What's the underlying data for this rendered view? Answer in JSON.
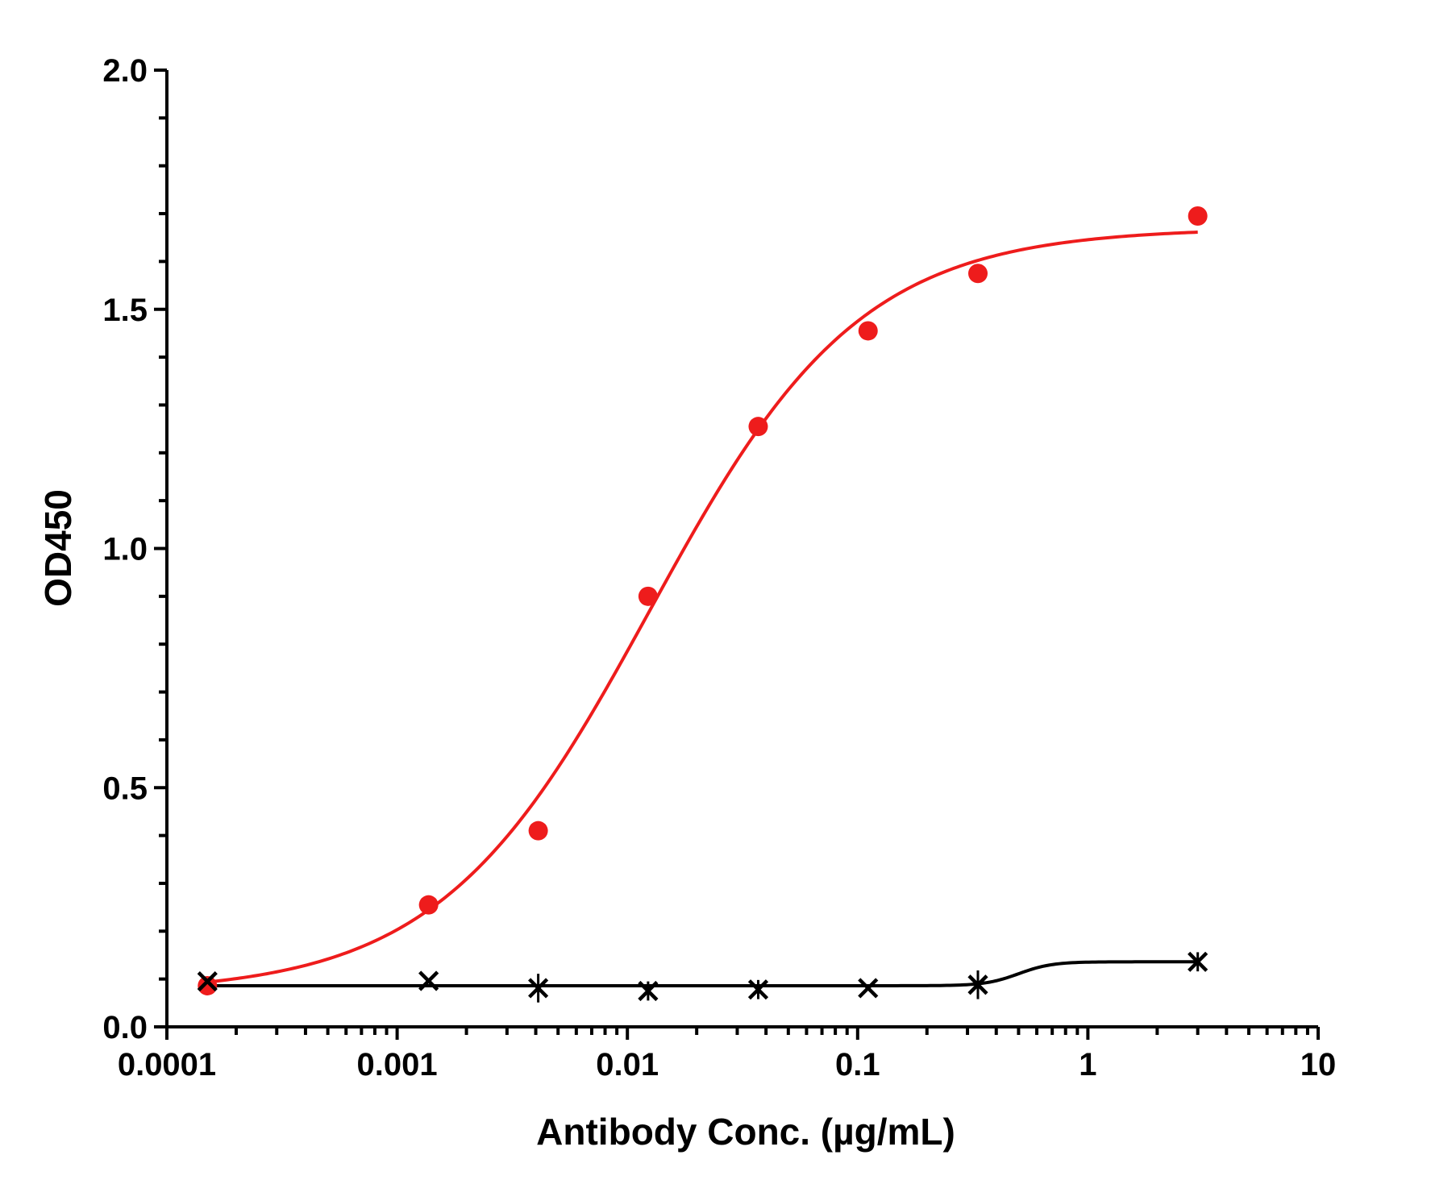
{
  "chart_data": {
    "type": "scatter",
    "title": "",
    "xlabel": "Antibody Conc. (µg/mL)",
    "ylabel": "OD450",
    "x_scale": "log",
    "xlim": [
      0.0001,
      10
    ],
    "ylim": [
      0,
      2.0
    ],
    "grid": false,
    "x_ticks": [
      0.0001,
      0.001,
      0.01,
      0.1,
      1,
      10
    ],
    "x_tick_labels": [
      "0.0001",
      "0.001",
      "0.01",
      "0.1",
      "1",
      "10"
    ],
    "y_ticks": [
      0,
      0.5,
      1.0,
      1.5,
      2.0
    ],
    "y_tick_labels": [
      "0.0",
      "0.5",
      "1.0",
      "1.5",
      "2.0"
    ],
    "series": [
      {
        "marker": "circle",
        "color": "#ee1c1c",
        "x": [
          0.00015,
          0.00137,
          0.0041,
          0.0123,
          0.037,
          0.111,
          0.333,
          3.0
        ],
        "y": [
          0.086,
          0.255,
          0.41,
          0.9,
          1.255,
          1.455,
          1.575,
          1.695
        ],
        "fit": {
          "model": "4PL",
          "bottom": 0.07,
          "top": 1.67,
          "ec50": 0.0125,
          "hill": 0.95
        }
      },
      {
        "marker": "x",
        "color": "#000000",
        "x": [
          0.00015,
          0.00137,
          0.0041,
          0.0123,
          0.037,
          0.111,
          0.333,
          3.0
        ],
        "y": [
          0.095,
          0.096,
          0.081,
          0.075,
          0.078,
          0.081,
          0.088,
          0.136
        ],
        "errors": [
          0.0,
          0.0,
          0.03,
          0.02,
          0.02,
          0.0,
          0.03,
          0.02
        ],
        "fit": {
          "model": "4PL",
          "bottom": 0.086,
          "top": 0.136,
          "ec50": 0.5,
          "hill": 6
        }
      }
    ]
  }
}
